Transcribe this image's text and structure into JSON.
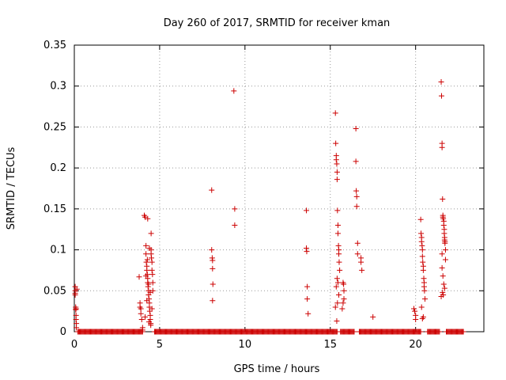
{
  "chart_data": {
    "type": "scatter",
    "title": "Day 260 of 2017, SRMTID for receiver kman",
    "xlabel": "GPS time / hours",
    "ylabel": "SRMTID / TECUs",
    "xlim": [
      0,
      24
    ],
    "ylim": [
      0,
      0.35
    ],
    "xticks": [
      0,
      5,
      10,
      15,
      20
    ],
    "yticks": [
      0,
      0.05,
      0.1,
      0.15,
      0.2,
      0.25,
      0.3,
      0.35
    ],
    "ytick_labels": [
      "0",
      "0.05",
      "0.1",
      "0.15",
      "0.2",
      "0.25",
      "0.3",
      "0.35"
    ],
    "xtick_labels": [
      "0",
      "5",
      "10",
      "15",
      "20"
    ],
    "grid": true,
    "marker": "+",
    "color": "#cc0000",
    "series": [
      {
        "name": "SRMTID",
        "x": [
          0.05,
          0.05,
          0.05,
          0.08,
          0.08,
          0.1,
          0.1,
          0.12,
          0.12,
          0.15,
          0.05,
          0.1,
          3.8,
          3.85,
          3.85,
          3.9,
          3.9,
          3.95,
          4.0,
          4.0,
          4.1,
          4.15,
          4.2,
          4.2,
          4.22,
          4.25,
          4.25,
          4.28,
          4.3,
          4.3,
          4.32,
          4.35,
          4.35,
          4.38,
          4.4,
          4.4,
          4.42,
          4.45,
          4.45,
          4.48,
          4.5,
          4.5,
          4.52,
          4.55,
          4.55,
          4.58,
          4.6,
          4.6,
          4.3,
          4.4,
          4.5,
          4.2,
          4.35,
          4.45,
          4.25,
          4.55,
          4.15,
          4.38,
          4.48,
          4.28,
          8.05,
          8.05,
          8.08,
          8.1,
          8.1,
          8.12,
          8.1,
          9.35,
          9.4,
          9.4,
          13.6,
          13.6,
          13.62,
          13.65,
          13.65,
          13.7,
          15.3,
          15.32,
          15.35,
          15.35,
          15.38,
          15.4,
          15.4,
          15.42,
          15.45,
          15.45,
          15.48,
          15.5,
          15.5,
          15.52,
          15.55,
          15.4,
          15.45,
          15.35,
          15.5,
          15.42,
          15.3,
          15.38,
          15.75,
          15.78,
          15.8,
          15.8,
          15.75,
          15.7,
          16.5,
          16.5,
          16.52,
          16.55,
          16.55,
          16.6,
          16.6,
          16.8,
          16.8,
          16.85,
          17.5,
          19.9,
          19.95,
          20.0,
          20.0,
          20.3,
          20.32,
          20.35,
          20.35,
          20.38,
          20.4,
          20.4,
          20.42,
          20.45,
          20.45,
          20.48,
          20.5,
          20.5,
          20.52,
          20.55,
          20.35,
          20.45,
          20.4,
          21.5,
          21.52,
          21.55,
          21.55,
          21.58,
          21.6,
          21.6,
          21.62,
          21.65,
          21.65,
          21.68,
          21.7,
          21.7,
          21.72,
          21.75,
          21.75,
          21.55,
          21.6,
          21.65,
          21.7,
          21.58,
          21.62,
          21.5,
          21.68,
          21.72,
          21.55
        ],
        "y": [
          0.055,
          0.05,
          0.045,
          0.03,
          0.027,
          0.02,
          0.015,
          0.01,
          0.005,
          0.052,
          0.047,
          0.028,
          0.067,
          0.035,
          0.03,
          0.028,
          0.022,
          0.015,
          0.005,
          0.002,
          0.142,
          0.14,
          0.105,
          0.095,
          0.085,
          0.08,
          0.075,
          0.07,
          0.065,
          0.06,
          0.055,
          0.05,
          0.045,
          0.04,
          0.035,
          0.03,
          0.025,
          0.02,
          0.015,
          0.01,
          0.1,
          0.095,
          0.09,
          0.085,
          0.075,
          0.07,
          0.06,
          0.05,
          0.138,
          0.102,
          0.12,
          0.068,
          0.058,
          0.048,
          0.038,
          0.028,
          0.018,
          0.012,
          0.008,
          0.088,
          0.173,
          0.1,
          0.09,
          0.087,
          0.077,
          0.058,
          0.038,
          0.294,
          0.15,
          0.13,
          0.148,
          0.102,
          0.098,
          0.055,
          0.04,
          0.022,
          0.267,
          0.23,
          0.215,
          0.21,
          0.205,
          0.195,
          0.186,
          0.148,
          0.13,
          0.12,
          0.105,
          0.1,
          0.095,
          0.085,
          0.075,
          0.065,
          0.06,
          0.055,
          0.045,
          0.035,
          0.03,
          0.013,
          0.06,
          0.058,
          0.05,
          0.04,
          0.035,
          0.028,
          0.248,
          0.208,
          0.172,
          0.165,
          0.153,
          0.108,
          0.095,
          0.09,
          0.085,
          0.075,
          0.018,
          0.028,
          0.025,
          0.02,
          0.015,
          0.137,
          0.12,
          0.115,
          0.11,
          0.105,
          0.1,
          0.092,
          0.085,
          0.08,
          0.075,
          0.065,
          0.06,
          0.055,
          0.05,
          0.04,
          0.03,
          0.018,
          0.016,
          0.305,
          0.288,
          0.23,
          0.225,
          0.162,
          0.142,
          0.14,
          0.138,
          0.135,
          0.13,
          0.125,
          0.115,
          0.112,
          0.108,
          0.1,
          0.088,
          0.078,
          0.068,
          0.058,
          0.053,
          0.048,
          0.045,
          0.043,
          0.12,
          0.11,
          0.095
        ]
      }
    ],
    "baseline_segments": [
      [
        0.2,
        4.0
      ],
      [
        4.7,
        15.4
      ],
      [
        15.6,
        16.4
      ],
      [
        16.7,
        20.3
      ],
      [
        20.7,
        21.4
      ],
      [
        21.8,
        22.8
      ]
    ]
  }
}
